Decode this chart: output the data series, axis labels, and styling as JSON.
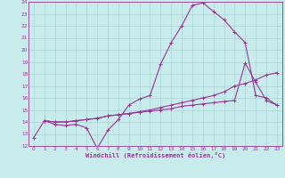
{
  "xlabel": "Windchill (Refroidissement éolien,°C)",
  "ylabel": "",
  "bg_color": "#c8ecec",
  "grid_color": "#aad4d4",
  "line_color": "#993399",
  "xlim": [
    -0.5,
    23.5
  ],
  "ylim": [
    12,
    24
  ],
  "xticks": [
    0,
    1,
    2,
    3,
    4,
    5,
    6,
    7,
    8,
    9,
    10,
    11,
    12,
    13,
    14,
    15,
    16,
    17,
    18,
    19,
    20,
    21,
    22,
    23
  ],
  "yticks": [
    12,
    13,
    14,
    15,
    16,
    17,
    18,
    19,
    20,
    21,
    22,
    23,
    24
  ],
  "line1_x": [
    0,
    1,
    2,
    3,
    4,
    5,
    6,
    7,
    8,
    9,
    10,
    11,
    12,
    13,
    14,
    15,
    16,
    17,
    18,
    19,
    20,
    21,
    22,
    23
  ],
  "line1_y": [
    12.7,
    14.1,
    13.8,
    13.7,
    13.8,
    13.5,
    11.8,
    13.3,
    14.2,
    15.4,
    15.9,
    16.2,
    18.8,
    20.6,
    22.0,
    23.7,
    23.9,
    23.2,
    22.5,
    21.5,
    20.6,
    16.2,
    16.0,
    15.4
  ],
  "line2_x": [
    1,
    2,
    3,
    4,
    5,
    6,
    7,
    8,
    9,
    10,
    11,
    12,
    13,
    14,
    15,
    16,
    17,
    18,
    19,
    20,
    21,
    22,
    23
  ],
  "line2_y": [
    14.1,
    14.0,
    14.0,
    14.1,
    14.2,
    14.3,
    14.5,
    14.6,
    14.7,
    14.8,
    14.9,
    15.0,
    15.1,
    15.3,
    15.4,
    15.5,
    15.6,
    15.7,
    15.8,
    18.9,
    17.3,
    15.8,
    15.4
  ],
  "line3_x": [
    1,
    2,
    3,
    4,
    5,
    6,
    7,
    8,
    9,
    10,
    11,
    12,
    13,
    14,
    15,
    16,
    17,
    18,
    19,
    20,
    21,
    22,
    23
  ],
  "line3_y": [
    14.1,
    14.0,
    14.0,
    14.1,
    14.2,
    14.3,
    14.5,
    14.6,
    14.7,
    14.85,
    15.0,
    15.2,
    15.4,
    15.6,
    15.8,
    16.0,
    16.2,
    16.5,
    17.0,
    17.2,
    17.5,
    17.9,
    18.1
  ]
}
